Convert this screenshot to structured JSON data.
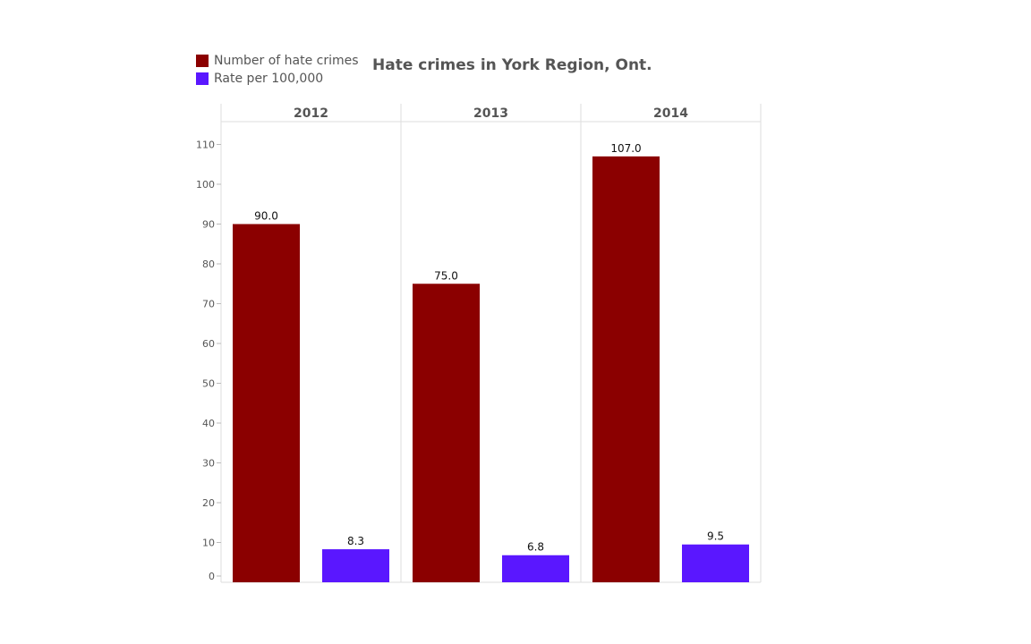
{
  "chart_data": {
    "type": "bar",
    "title": "Hate crimes in York Region, Ont.",
    "categories": [
      "2012",
      "2013",
      "2014"
    ],
    "series": [
      {
        "name": "Number of hate crimes",
        "color": "#8b0000",
        "values": [
          90.0,
          75.0,
          107.0
        ],
        "labels": [
          "90.0",
          "75.0",
          "107.0"
        ]
      },
      {
        "name": "Rate per 100,000",
        "color": "#5a17ff",
        "values": [
          8.3,
          6.8,
          9.5
        ],
        "labels": [
          "8.3",
          "6.8",
          "9.5"
        ]
      }
    ],
    "yticks": [
      0,
      10,
      20,
      30,
      40,
      50,
      60,
      70,
      80,
      90,
      100,
      110
    ],
    "ylim": [
      0,
      115
    ],
    "legend": "top-left",
    "xlabel": "",
    "ylabel": ""
  }
}
